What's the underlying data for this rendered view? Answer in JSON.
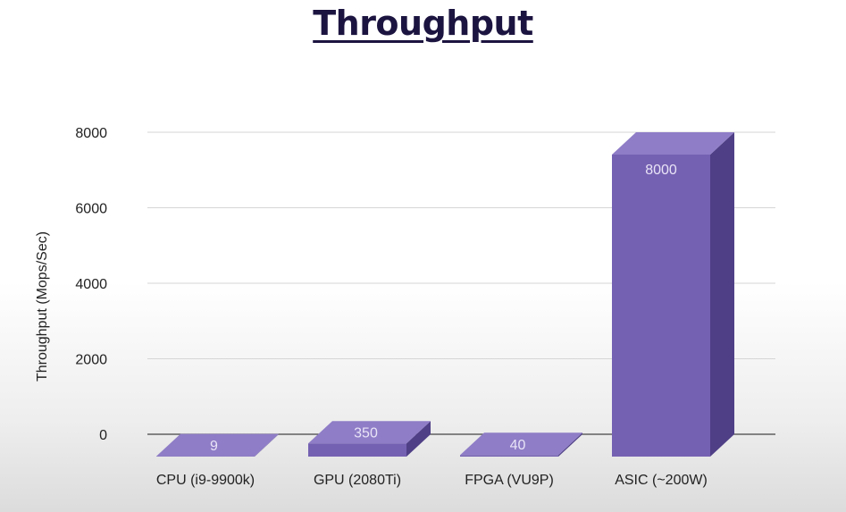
{
  "chart_data": {
    "type": "bar",
    "title": "Throughput",
    "xlabel": "",
    "ylabel": "Throughput (Mops/Sec)",
    "categories": [
      "CPU (i9-9900k)",
      "GPU (2080Ti)",
      "FPGA (VU9P)",
      "ASIC (~200W)"
    ],
    "values": [
      9,
      350,
      40,
      8000
    ],
    "data_labels": [
      "9",
      "350",
      "40",
      "8000"
    ],
    "yticks": [
      0,
      2000,
      4000,
      6000,
      8000
    ],
    "ytick_labels": [
      "0",
      "2000",
      "4000",
      "6000",
      "8000"
    ],
    "ylim": [
      0,
      8000
    ],
    "grid": true,
    "legend": "none",
    "style": "3d-column",
    "colors": {
      "front": "#7561b2",
      "top": "#8f7dc7",
      "side": "#4f3f86",
      "grid": "#d6d6d6",
      "axis": "#444444"
    }
  }
}
